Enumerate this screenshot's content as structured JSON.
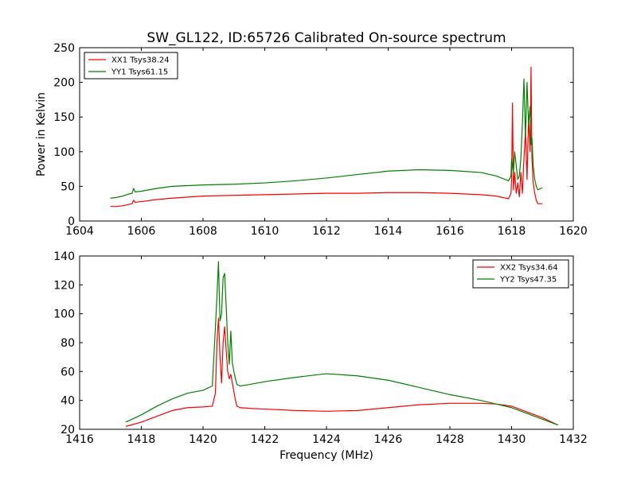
{
  "title": "SW_GL122, ID:65726 Calibrated On-source spectrum",
  "ylabel": "Power in Kelvin",
  "xlabel": "Frequency (MHz)",
  "colors": {
    "xx": "#ff0000",
    "yy": "#008000",
    "axes": "#000000",
    "background": "#ffffff"
  },
  "chart_data": [
    {
      "type": "line",
      "xlim": [
        1604,
        1620
      ],
      "ylim": [
        0,
        250
      ],
      "xticks": [
        "1604",
        "1606",
        "1608",
        "1610",
        "1612",
        "1614",
        "1616",
        "1618",
        "1620"
      ],
      "yticks": [
        "0",
        "50",
        "100",
        "150",
        "200",
        "250"
      ],
      "ylabel": "Power in Kelvin",
      "xlabel": "",
      "legend_position": "top-left",
      "grid": false,
      "series": [
        {
          "name": "XX1 Tsys38.24",
          "color": "#ff0000",
          "x": [
            1605.0,
            1605.2,
            1605.4,
            1605.6,
            1605.7,
            1605.75,
            1605.8,
            1606.0,
            1606.5,
            1607.0,
            1608.0,
            1609.0,
            1610.0,
            1611.0,
            1612.0,
            1613.0,
            1614.0,
            1615.0,
            1616.0,
            1617.0,
            1617.5,
            1617.9,
            1617.98,
            1618.0,
            1618.03,
            1618.06,
            1618.1,
            1618.15,
            1618.2,
            1618.25,
            1618.3,
            1618.35,
            1618.4,
            1618.45,
            1618.5,
            1618.55,
            1618.6,
            1618.63,
            1618.66,
            1618.7,
            1618.75,
            1618.8,
            1618.85,
            1619.0
          ],
          "y": [
            21,
            21,
            22,
            24,
            25,
            30,
            27,
            28,
            31,
            33,
            36,
            37,
            38,
            39,
            40,
            40,
            41,
            41,
            40,
            38,
            36,
            32,
            40,
            60,
            170,
            45,
            70,
            40,
            55,
            35,
            70,
            40,
            90,
            130,
            60,
            150,
            100,
            222,
            90,
            55,
            40,
            30,
            25,
            25
          ]
        },
        {
          "name": "YY1 Tsys61.15",
          "color": "#008000",
          "x": [
            1605.0,
            1605.2,
            1605.4,
            1605.6,
            1605.7,
            1605.75,
            1605.8,
            1606.0,
            1606.5,
            1607.0,
            1608.0,
            1609.0,
            1610.0,
            1611.0,
            1612.0,
            1613.0,
            1614.0,
            1615.0,
            1616.0,
            1617.0,
            1617.5,
            1617.9,
            1617.98,
            1618.0,
            1618.03,
            1618.06,
            1618.1,
            1618.15,
            1618.2,
            1618.25,
            1618.3,
            1618.35,
            1618.4,
            1618.45,
            1618.5,
            1618.55,
            1618.6,
            1618.63,
            1618.66,
            1618.7,
            1618.75,
            1618.8,
            1618.85,
            1619.0
          ],
          "y": [
            33,
            34,
            36,
            39,
            40,
            47,
            42,
            43,
            47,
            50,
            52,
            53,
            55,
            58,
            62,
            67,
            72,
            74,
            73,
            70,
            65,
            58,
            65,
            90,
            80,
            70,
            100,
            80,
            60,
            65,
            90,
            140,
            205,
            120,
            200,
            140,
            165,
            110,
            120,
            80,
            60,
            50,
            45,
            48
          ]
        }
      ]
    },
    {
      "type": "line",
      "xlim": [
        1416,
        1432
      ],
      "ylim": [
        20,
        140
      ],
      "xticks": [
        "1416",
        "1418",
        "1420",
        "1422",
        "1424",
        "1426",
        "1428",
        "1430",
        "1432"
      ],
      "yticks": [
        "20",
        "40",
        "60",
        "80",
        "100",
        "120",
        "140"
      ],
      "ylabel": "",
      "xlabel": "Frequency (MHz)",
      "legend_position": "top-right",
      "grid": false,
      "series": [
        {
          "name": "XX2 Tsys34.64",
          "color": "#ff0000",
          "x": [
            1417.5,
            1418.0,
            1418.5,
            1419.0,
            1419.5,
            1420.0,
            1420.3,
            1420.4,
            1420.45,
            1420.5,
            1420.55,
            1420.6,
            1420.65,
            1420.7,
            1420.75,
            1420.8,
            1420.85,
            1420.9,
            1420.95,
            1421.0,
            1421.05,
            1421.1,
            1421.2,
            1421.5,
            1422.0,
            1423.0,
            1424.0,
            1425.0,
            1426.0,
            1427.0,
            1428.0,
            1429.0,
            1429.5,
            1430.0,
            1430.5,
            1431.0,
            1431.5
          ],
          "y": [
            22,
            25,
            29,
            33,
            35,
            35.5,
            36,
            45,
            80,
            97,
            70,
            52,
            80,
            91,
            75,
            60,
            55,
            58,
            52,
            46,
            40,
            36,
            35,
            34.5,
            34,
            33,
            32.5,
            33,
            35,
            37,
            38,
            38,
            37.5,
            36,
            32,
            28,
            23
          ]
        },
        {
          "name": "YY2 Tsys47.35",
          "color": "#008000",
          "x": [
            1417.5,
            1418.0,
            1418.5,
            1419.0,
            1419.5,
            1420.0,
            1420.3,
            1420.4,
            1420.45,
            1420.5,
            1420.55,
            1420.6,
            1420.65,
            1420.7,
            1420.75,
            1420.8,
            1420.85,
            1420.9,
            1420.95,
            1421.0,
            1421.05,
            1421.1,
            1421.2,
            1421.5,
            1422.0,
            1423.0,
            1424.0,
            1425.0,
            1426.0,
            1427.0,
            1428.0,
            1429.0,
            1429.5,
            1430.0,
            1430.5,
            1431.0,
            1431.5
          ],
          "y": [
            25,
            30,
            36,
            41,
            45,
            47,
            50,
            90,
            112,
            136,
            95,
            100,
            125,
            128,
            105,
            80,
            65,
            88,
            66,
            60,
            55,
            51,
            50,
            51,
            53,
            56,
            58.5,
            57,
            54,
            49,
            44,
            40,
            37.5,
            35,
            31,
            27,
            23
          ]
        }
      ]
    }
  ]
}
